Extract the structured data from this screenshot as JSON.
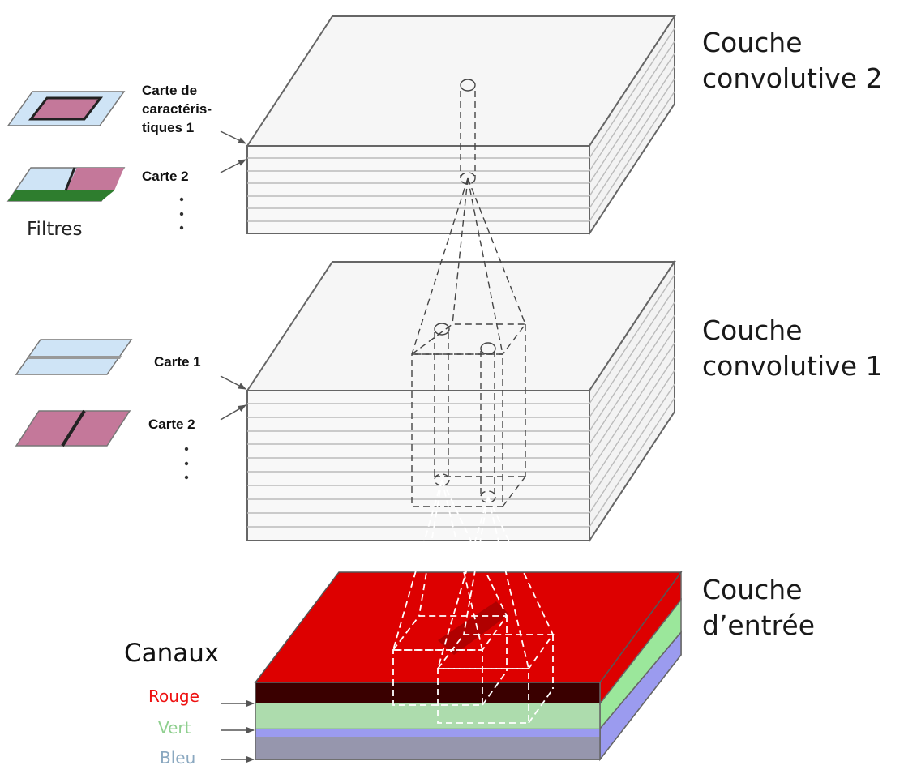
{
  "layers": {
    "conv2": {
      "line1": "Couche",
      "line2": "convolutive 2"
    },
    "conv1": {
      "line1": "Couche",
      "line2": "convolutive 1"
    },
    "input": {
      "line1": "Couche",
      "line2": "d’entrée"
    }
  },
  "conv2_maps": {
    "map1_line1": "Carte de",
    "map1_line2": "caractéris-",
    "map1_line3": "tiques 1",
    "map2": "Carte 2"
  },
  "conv1_maps": {
    "map1": "Carte 1",
    "map2": "Carte 2"
  },
  "filters_label": "Filtres",
  "channels": {
    "title": "Canaux",
    "red": "Rouge",
    "green": "Vert",
    "blue": "Bleu"
  },
  "colors": {
    "red_channel": "#dd0000",
    "green_channel": "#9be79b",
    "blue_channel": "#9b9bef",
    "filter_light_blue": "#cfe4f6",
    "filter_pink": "#c4789a",
    "filter_green": "#2e7d2e",
    "rouge_text": "#ee1111",
    "vert_text": "#8fcf8f",
    "bleu_text": "#8aa8c0"
  }
}
